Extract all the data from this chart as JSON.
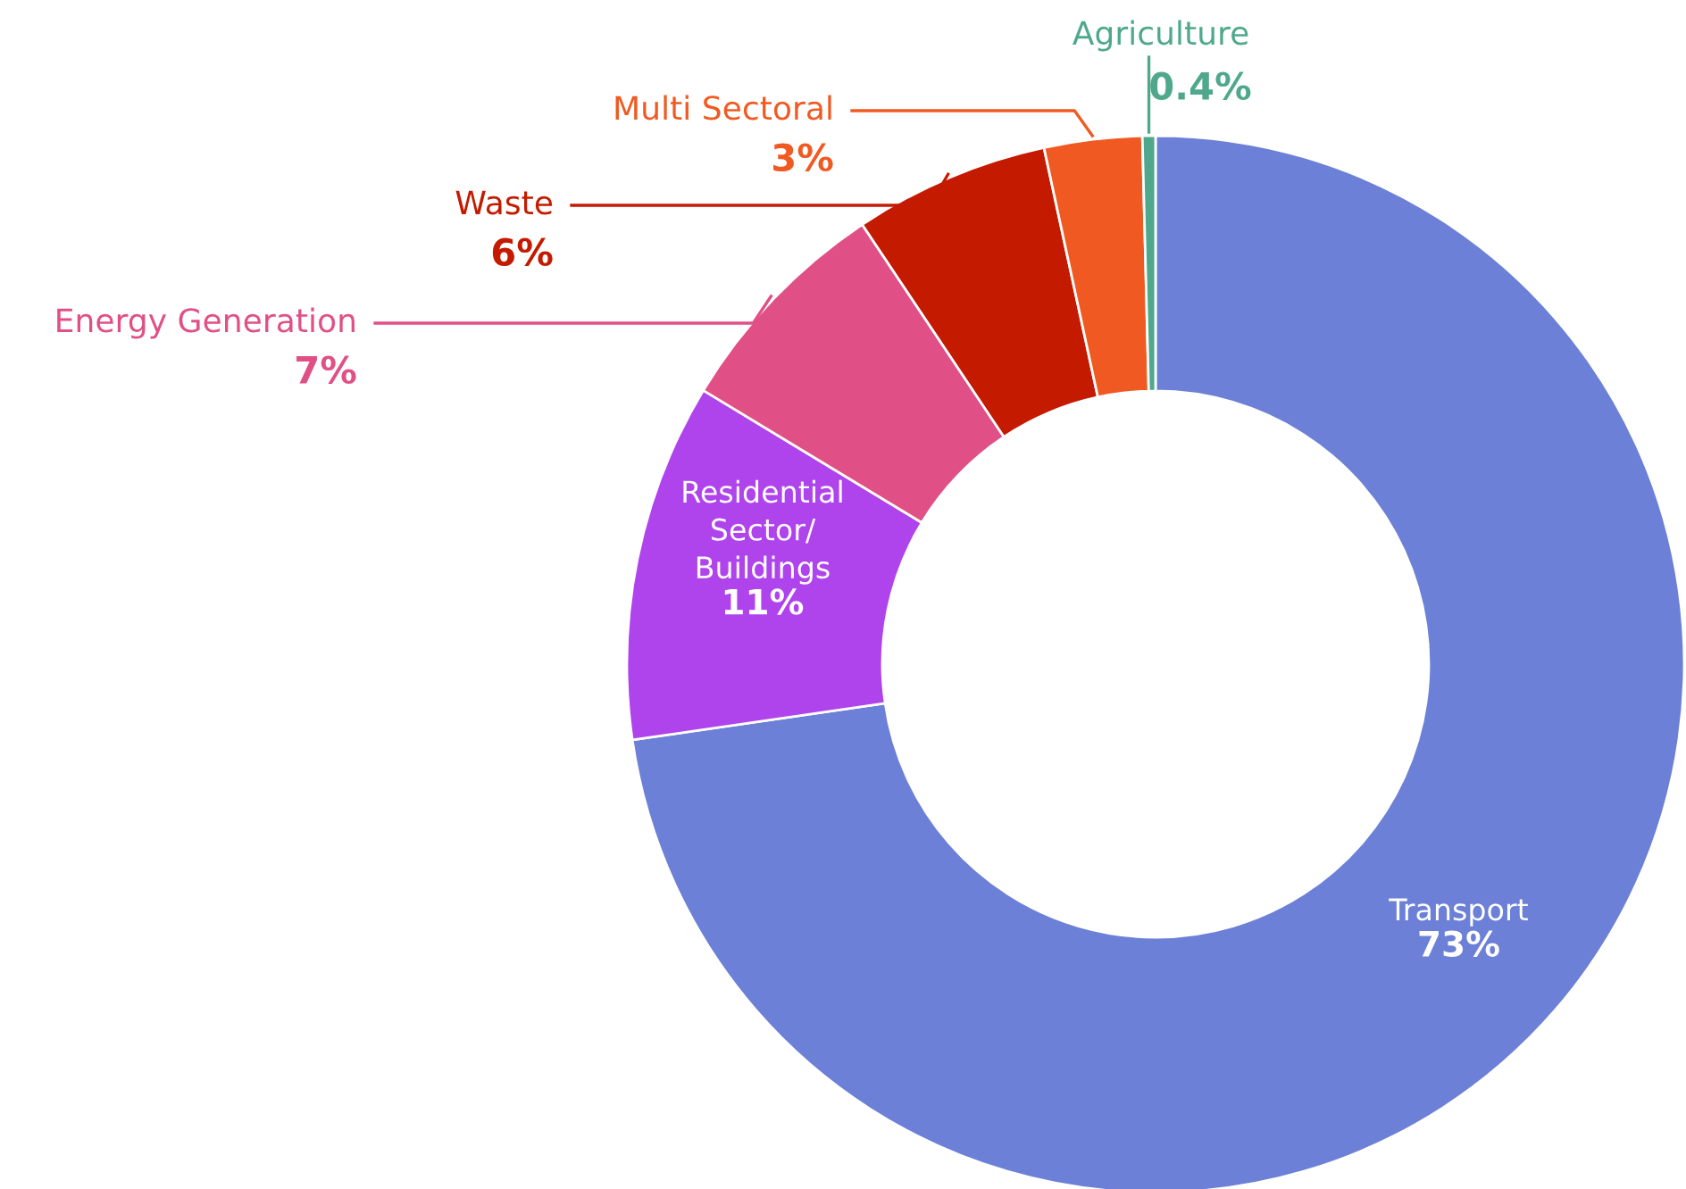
{
  "chart_data": {
    "type": "donut",
    "categories": [
      "Transport",
      "Residential\nSector/\nBuildings",
      "Energy Generation",
      "Waste",
      "Multi Sectoral",
      "Agriculture"
    ],
    "values": [
      73,
      11,
      7,
      6,
      3,
      0.4
    ],
    "colors": [
      "#6b80d6",
      "#b044ec",
      "#e05087",
      "#c41a00",
      "#f05a22",
      "#4fa88c"
    ],
    "value_labels": [
      "73%",
      "11%",
      "7%",
      "6%",
      "3%",
      "0.4%"
    ]
  }
}
